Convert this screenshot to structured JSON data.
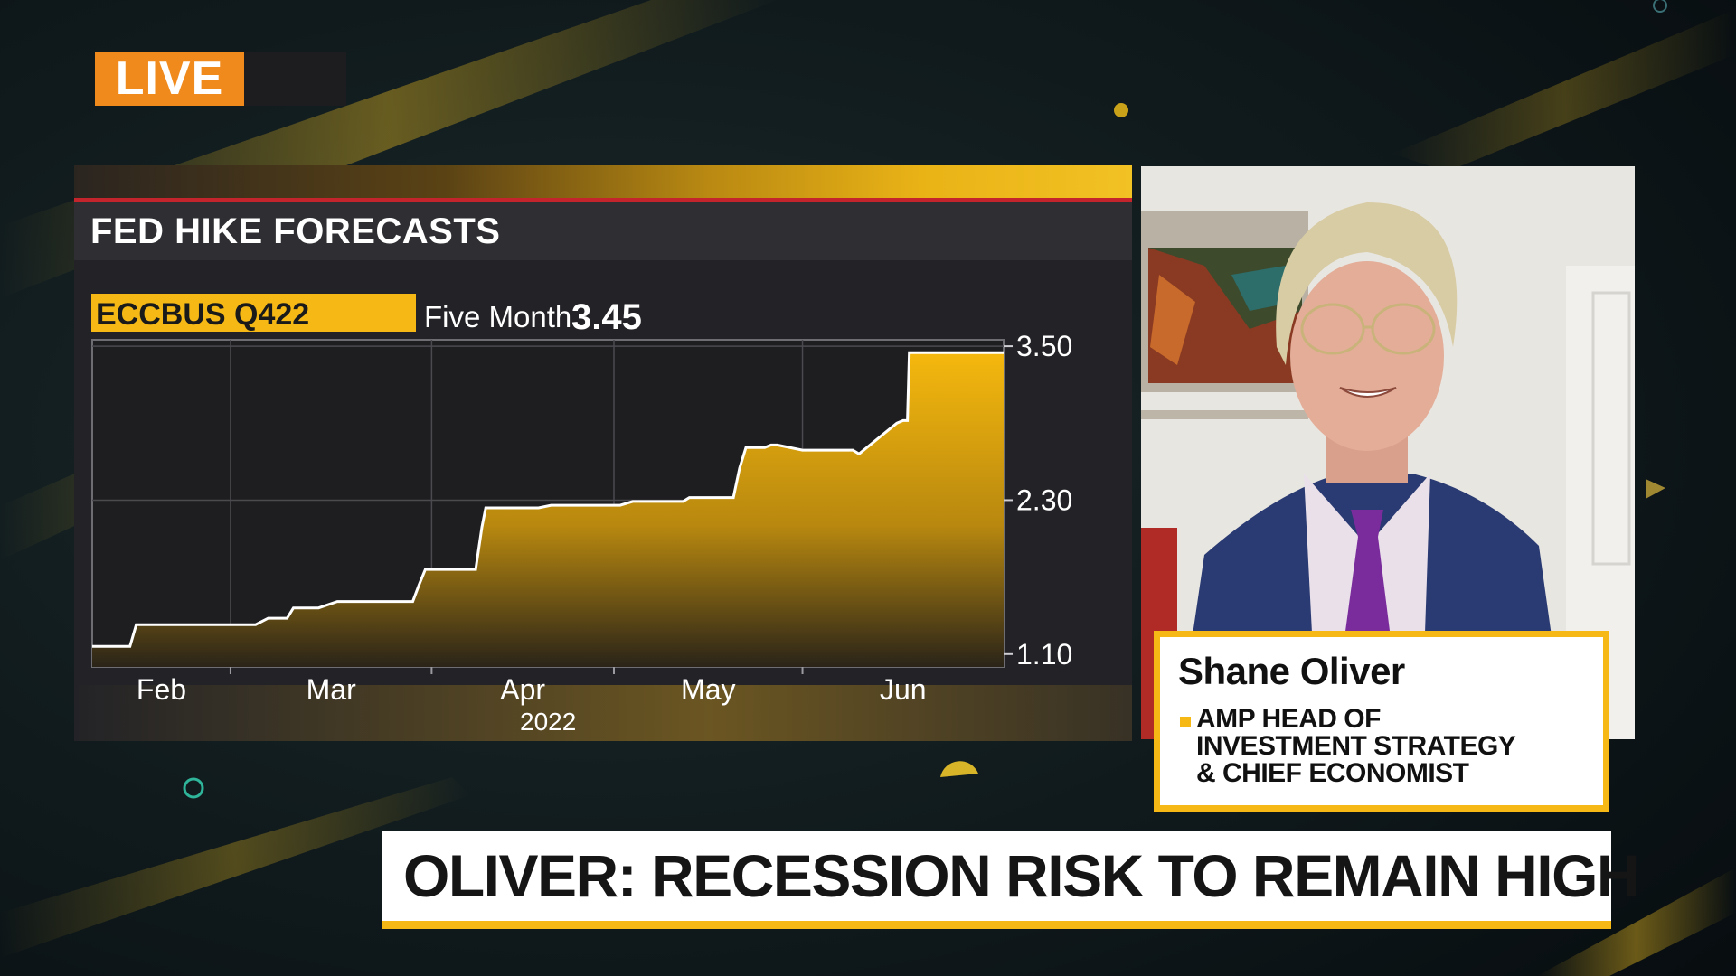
{
  "live_badge": {
    "label": "LIVE"
  },
  "chart_panel": {
    "title": "FED HIKE FORECASTS",
    "ticker": "ECCBUS Q422",
    "ticker_period": "Five Month",
    "ticker_value": "3.45"
  },
  "chart_data": {
    "type": "area",
    "title": "FED HIKE FORECASTS",
    "x_tick_labels": [
      "Feb",
      "Mar",
      "Apr",
      "May",
      "Jun"
    ],
    "x_sub_label": "2022",
    "y_tick_labels": [
      "3.50",
      "2.30",
      "1.10"
    ],
    "y_ticks": [
      3.5,
      2.3,
      1.1
    ],
    "ylim": [
      1.0,
      3.55
    ],
    "x_range_days": [
      0,
      145
    ],
    "x_month_boundaries": [
      22,
      54,
      83,
      113
    ],
    "series": [
      {
        "x": [
          0,
          6,
          7,
          26,
          28,
          31,
          32,
          36,
          39,
          51,
          52,
          53,
          56,
          61,
          62,
          62.6,
          71,
          73,
          84,
          86,
          87,
          94,
          95,
          96,
          102,
          103,
          104,
          107,
          108,
          109,
          113,
          121,
          122,
          128,
          129,
          129.7,
          130,
          145
        ],
        "y": [
          1.16,
          1.16,
          1.33,
          1.33,
          1.38,
          1.38,
          1.46,
          1.46,
          1.51,
          1.51,
          1.64,
          1.76,
          1.76,
          1.76,
          2.09,
          2.24,
          2.24,
          2.26,
          2.26,
          2.29,
          2.29,
          2.29,
          2.32,
          2.32,
          2.32,
          2.55,
          2.71,
          2.71,
          2.73,
          2.73,
          2.69,
          2.69,
          2.66,
          2.9,
          2.92,
          2.92,
          3.45,
          3.45
        ]
      }
    ],
    "colors": {
      "line": "#ffffff",
      "fill_top": "#f5b80e",
      "fill_bottom": "#2a2418"
    },
    "grid": true
  },
  "guest": {
    "name": "Shane Oliver",
    "title": "AMP HEAD OF\nINVESTMENT STRATEGY\n& CHIEF ECONOMIST"
  },
  "headline": "OLIVER: RECESSION RISK TO REMAIN HIGH",
  "colors": {
    "accent": "#f5b815",
    "live": "#f08a1c",
    "panel": "#232327",
    "rule": "#c4242b"
  }
}
